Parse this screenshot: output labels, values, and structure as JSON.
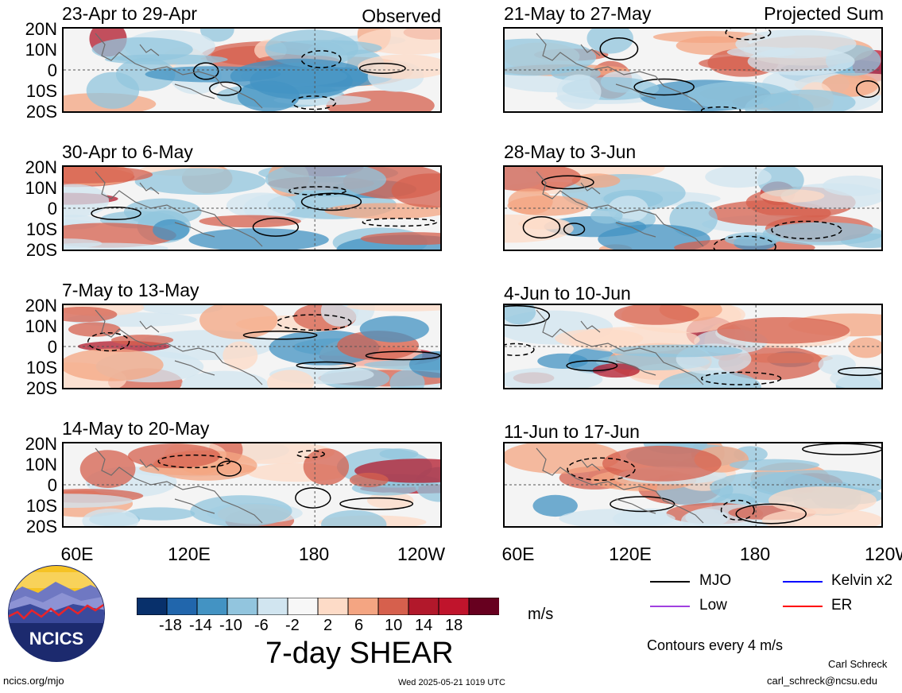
{
  "panels_left": [
    {
      "title": "23-Apr to 29-Apr",
      "tag": "Observed"
    },
    {
      "title": "30-Apr to 6-May",
      "tag": ""
    },
    {
      "title": "7-May to 13-May",
      "tag": ""
    },
    {
      "title": "14-May to 20-May",
      "tag": ""
    }
  ],
  "panels_right": [
    {
      "title": "21-May to 27-May",
      "tag": "Projected Sum"
    },
    {
      "title": "28-May to 3-Jun",
      "tag": ""
    },
    {
      "title": "4-Jun to 10-Jun",
      "tag": ""
    },
    {
      "title": "11-Jun to 17-Jun",
      "tag": ""
    }
  ],
  "lat_labels": [
    "20N",
    "10N",
    "0",
    "10S",
    "20S"
  ],
  "lon_labels": [
    "60E",
    "120E",
    "180",
    "120W"
  ],
  "colorbar": {
    "colors": [
      "#08306b",
      "#2166ac",
      "#4393c3",
      "#92c5de",
      "#d1e5f0",
      "#f7f7f7",
      "#fddbc7",
      "#f4a582",
      "#d6604d",
      "#b2182b",
      "#c0142c",
      "#67001f"
    ],
    "tick_labels": [
      "-18",
      "-14",
      "-10",
      "-6",
      "-2",
      "2",
      "6",
      "10",
      "14",
      "18"
    ],
    "units": "m/s"
  },
  "main_title": "7-day SHEAR",
  "legend": {
    "items": [
      {
        "label": "MJO",
        "color": "#000000"
      },
      {
        "label": "Kelvin x2",
        "color": "#0000ff"
      },
      {
        "label": "Low",
        "color": "#a040e0"
      },
      {
        "label": "ER",
        "color": "#ff0000"
      }
    ],
    "contour_note": "Contours every 4 m/s"
  },
  "logo_text": "NCICS",
  "footer": {
    "url": "ncics.org/mjo",
    "timestamp": "Wed 2025-05-21 1019 UTC",
    "author": "Carl Schreck",
    "email": "carl_schreck@ncsu.edu"
  }
}
